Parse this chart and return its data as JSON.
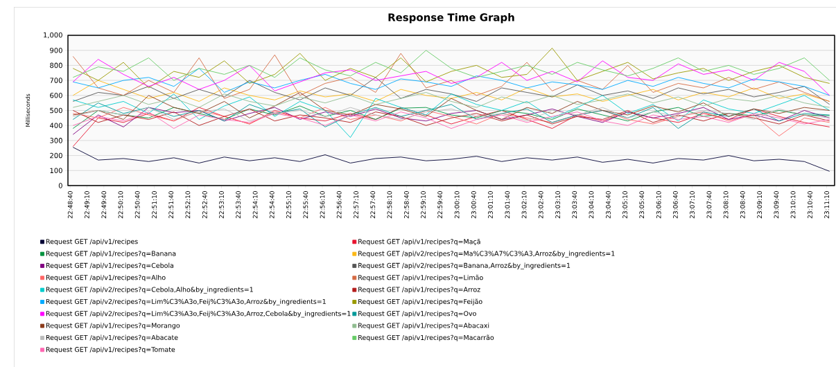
{
  "chart_data": {
    "type": "line",
    "title": "Response Time Graph",
    "ylabel": "Milliseconds",
    "x": [
      22.8125,
      22.825,
      22.8375,
      22.85,
      22.8625,
      22.875,
      22.8875,
      22.9,
      22.9125,
      22.925,
      22.9375,
      22.95,
      22.9625,
      22.975,
      22.9875,
      23.0,
      23.0125,
      23.025,
      23.0375,
      23.05,
      23.0625,
      23.075,
      23.0875,
      23.1,
      23.1125,
      23.125,
      23.1375,
      23.15,
      23.1625,
      23.175,
      23.1875
    ],
    "xlim": [
      22.81,
      23.19
    ],
    "xticks": [
      {
        "value": 22.8111,
        "label": "22:48:40"
      },
      {
        "value": 22.8194,
        "label": "22:49:10"
      },
      {
        "value": 22.8278,
        "label": "22:49:40"
      },
      {
        "value": 22.8361,
        "label": "22:50:10"
      },
      {
        "value": 22.8444,
        "label": "22:50:40"
      },
      {
        "value": 22.8528,
        "label": "22:51:10"
      },
      {
        "value": 22.8611,
        "label": "22:51:40"
      },
      {
        "value": 22.8694,
        "label": "22:52:10"
      },
      {
        "value": 22.8778,
        "label": "22:52:40"
      },
      {
        "value": 22.8861,
        "label": "22:53:10"
      },
      {
        "value": 22.8944,
        "label": "22:53:40"
      },
      {
        "value": 22.9028,
        "label": "22:54:10"
      },
      {
        "value": 22.9111,
        "label": "22:54:40"
      },
      {
        "value": 22.9194,
        "label": "22:55:10"
      },
      {
        "value": 22.9278,
        "label": "22:55:40"
      },
      {
        "value": 22.9361,
        "label": "22:56:10"
      },
      {
        "value": 22.9444,
        "label": "22:56:40"
      },
      {
        "value": 22.9528,
        "label": "22:57:10"
      },
      {
        "value": 22.9611,
        "label": "22:57:40"
      },
      {
        "value": 22.9694,
        "label": "22:58:10"
      },
      {
        "value": 22.9778,
        "label": "22:58:40"
      },
      {
        "value": 22.9861,
        "label": "22:59:10"
      },
      {
        "value": 22.9944,
        "label": "22:59:40"
      },
      {
        "value": 23.0028,
        "label": "23:00:10"
      },
      {
        "value": 23.0111,
        "label": "23:00:40"
      },
      {
        "value": 23.0194,
        "label": "23:01:10"
      },
      {
        "value": 23.0278,
        "label": "23:01:40"
      },
      {
        "value": 23.0361,
        "label": "23:02:10"
      },
      {
        "value": 23.0444,
        "label": "23:02:40"
      },
      {
        "value": 23.0528,
        "label": "23:03:10"
      },
      {
        "value": 23.0611,
        "label": "23:03:40"
      },
      {
        "value": 23.0694,
        "label": "23:04:10"
      },
      {
        "value": 23.0778,
        "label": "23:04:40"
      },
      {
        "value": 23.0861,
        "label": "23:05:10"
      },
      {
        "value": 23.0944,
        "label": "23:05:40"
      },
      {
        "value": 23.1028,
        "label": "23:06:10"
      },
      {
        "value": 23.1111,
        "label": "23:06:40"
      },
      {
        "value": 23.1194,
        "label": "23:07:10"
      },
      {
        "value": 23.1278,
        "label": "23:07:40"
      },
      {
        "value": 23.1361,
        "label": "23:08:10"
      },
      {
        "value": 23.1444,
        "label": "23:08:40"
      },
      {
        "value": 23.1528,
        "label": "23:09:10"
      },
      {
        "value": 23.1611,
        "label": "23:09:40"
      },
      {
        "value": 23.1694,
        "label": "23:10:10"
      },
      {
        "value": 23.1778,
        "label": "23:10:40"
      },
      {
        "value": 23.1861,
        "label": "23:11:10"
      }
    ],
    "ylim": [
      0,
      1000
    ],
    "yticks": [
      0,
      100,
      200,
      300,
      400,
      500,
      600,
      700,
      800,
      900,
      {
        "value": 1000,
        "label": "1,000"
      }
    ],
    "grid": "y",
    "legend": "bottom",
    "marker": "none",
    "line_style": "solid",
    "series": [
      {
        "name": "Request GET /api/v1/recipes",
        "color": "#000033",
        "values": [
          255,
          170,
          180,
          160,
          185,
          150,
          190,
          165,
          185,
          160,
          205,
          150,
          180,
          190,
          165,
          175,
          195,
          160,
          185,
          170,
          190,
          155,
          175,
          150,
          180,
          170,
          200,
          165,
          175,
          160,
          95
        ]
      },
      {
        "name": "Request GET /api/v1/recipes?q=Maçã",
        "color": "#e8132f",
        "values": [
          260,
          450,
          420,
          480,
          430,
          520,
          460,
          410,
          500,
          450,
          430,
          480,
          440,
          520,
          470,
          410,
          460,
          500,
          440,
          380,
          470,
          430,
          490,
          450,
          420,
          480,
          440,
          510,
          460,
          420,
          390
        ]
      },
      {
        "name": "Request GET /api/v1/recipes?q=Banana",
        "color": "#00923f",
        "values": [
          380,
          500,
          470,
          450,
          520,
          480,
          440,
          510,
          470,
          530,
          460,
          500,
          440,
          515,
          520,
          470,
          450,
          500,
          480,
          440,
          510,
          470,
          430,
          490,
          520,
          460,
          480,
          465,
          500,
          470,
          465
        ]
      },
      {
        "name": "Request GET /api/v2/recipes?q=Ma%C3%A7%C3%A3,Arroz&by_ingredients=1",
        "color": "#fcb814",
        "values": [
          600,
          700,
          640,
          580,
          620,
          560,
          650,
          600,
          570,
          630,
          590,
          610,
          560,
          640,
          600,
          580,
          620,
          570,
          650,
          590,
          610,
          560,
          600,
          640,
          570,
          620,
          590,
          650,
          580,
          610,
          560
        ]
      },
      {
        "name": "Request GET /api/v1/recipes?q=Cebola",
        "color": "#800080",
        "values": [
          340,
          470,
          390,
          520,
          485,
          500,
          430,
          480,
          520,
          440,
          490,
          460,
          510,
          450,
          430,
          480,
          500,
          440,
          470,
          510,
          460,
          420,
          490,
          450,
          480,
          520,
          440,
          470,
          430,
          500,
          450
        ]
      },
      {
        "name": "Request GET /api/v2/recipes?q=Banana,Arroz&by_ingredients=1",
        "color": "#555555",
        "values": [
          560,
          620,
          600,
          660,
          580,
          640,
          590,
          700,
          620,
          570,
          650,
          600,
          720,
          580,
          640,
          610,
          560,
          650,
          620,
          590,
          670,
          600,
          630,
          580,
          650,
          610,
          640,
          590,
          620,
          660,
          540
        ]
      },
      {
        "name": "Request GET /api/v1/recipes?q=Alho",
        "color": "#ff6666",
        "values": [
          480,
          450,
          520,
          470,
          430,
          500,
          460,
          410,
          490,
          450,
          520,
          440,
          470,
          430,
          500,
          460,
          410,
          480,
          450,
          420,
          470,
          500,
          440,
          410,
          460,
          490,
          430,
          470,
          330,
          450,
          420
        ]
      },
      {
        "name": "Request GET /api/v1/recipes?q=Limão",
        "color": "#d46a43",
        "values": [
          860,
          650,
          600,
          700,
          620,
          850,
          580,
          640,
          870,
          600,
          680,
          720,
          620,
          880,
          650,
          700,
          600,
          660,
          820,
          630,
          700,
          640,
          800,
          620,
          680,
          650,
          720,
          640,
          690,
          620,
          560
        ]
      },
      {
        "name": "Request GET /api/v2/recipes?q=Cebola,Alho&by_ingredients=1",
        "color": "#00cccc",
        "values": [
          570,
          520,
          560,
          480,
          610,
          440,
          530,
          590,
          460,
          560,
          500,
          320,
          580,
          520,
          470,
          610,
          540,
          500,
          560,
          450,
          520,
          600,
          480,
          540,
          430,
          570,
          510,
          480,
          540,
          600,
          500
        ]
      },
      {
        "name": "Request GET /api/v1/recipes?q=Arroz",
        "color": "#b31b1b",
        "values": [
          500,
          420,
          470,
          440,
          490,
          400,
          460,
          510,
          430,
          470,
          450,
          420,
          490,
          460,
          400,
          450,
          480,
          430,
          470,
          410,
          460,
          440,
          500,
          420,
          470,
          430,
          480,
          450,
          410,
          470,
          430
        ]
      },
      {
        "name": "Request GET /api/v2/recipes?q=Lim%C3%A3o,Feij%C3%A3o,Arroz&by_ingredients=1",
        "color": "#00aaff",
        "values": [
          690,
          650,
          700,
          720,
          660,
          780,
          620,
          690,
          650,
          700,
          740,
          680,
          640,
          710,
          690,
          660,
          730,
          700,
          650,
          690,
          670,
          640,
          700,
          660,
          720,
          680,
          650,
          710,
          690,
          660,
          600
        ]
      },
      {
        "name": "Request GET /api/v1/recipes?q=Feijão",
        "color": "#999900",
        "values": [
          780,
          700,
          820,
          650,
          760,
          720,
          830,
          680,
          740,
          880,
          700,
          780,
          720,
          850,
          690,
          760,
          800,
          720,
          740,
          915,
          700,
          760,
          820,
          710,
          750,
          780,
          700,
          760,
          800,
          720,
          680
        ]
      },
      {
        "name": "Request GET /api/v2/recipes?q=Lim%C3%A3o,Feij%C3%A3o,Arroz,Cebola&by_ingredients=1",
        "color": "#ff00ff",
        "values": [
          690,
          840,
          740,
          660,
          720,
          640,
          700,
          800,
          630,
          690,
          750,
          770,
          700,
          730,
          760,
          680,
          720,
          820,
          700,
          760,
          690,
          830,
          720,
          700,
          810,
          740,
          770,
          700,
          820,
          760,
          600
        ]
      },
      {
        "name": "Request GET /api/v1/recipes?q=Ovo",
        "color": "#009999",
        "values": [
          440,
          550,
          480,
          520,
          460,
          500,
          430,
          540,
          480,
          510,
          390,
          470,
          520,
          460,
          500,
          540,
          440,
          480,
          510,
          420,
          470,
          500,
          450,
          520,
          380,
          490,
          460,
          510,
          430,
          480,
          470
        ]
      },
      {
        "name": "Request GET /api/v1/recipes?q=Morango",
        "color": "#8b3a1a",
        "values": [
          470,
          500,
          440,
          600,
          520,
          480,
          560,
          450,
          530,
          620,
          500,
          470,
          540,
          510,
          460,
          580,
          500,
          440,
          520,
          480,
          560,
          500,
          470,
          530,
          490,
          550,
          460,
          510,
          480,
          520,
          500
        ]
      },
      {
        "name": "Request GET /api/v1/recipes?q=Abacaxi",
        "color": "#8fbc8f",
        "values": [
          520,
          560,
          600,
          540,
          580,
          520,
          610,
          560,
          530,
          590,
          550,
          600,
          540,
          580,
          620,
          560,
          520,
          590,
          550,
          600,
          540,
          570,
          610,
          550,
          590,
          530,
          580,
          560,
          600,
          550,
          520
        ]
      },
      {
        "name": "Request GET /api/v1/recipes?q=Abacate",
        "color": "#bbbbbb",
        "values": [
          460,
          500,
          470,
          520,
          440,
          490,
          510,
          430,
          480,
          500,
          460,
          520,
          470,
          440,
          490,
          510,
          460,
          480,
          430,
          500,
          470,
          520,
          450,
          490,
          460,
          500,
          480,
          440,
          510,
          470,
          450
        ]
      },
      {
        "name": "Request GET /api/v1/recipes?q=Macarrão",
        "color": "#66cc66",
        "values": [
          720,
          790,
          760,
          850,
          700,
          780,
          740,
          800,
          720,
          850,
          770,
          730,
          820,
          750,
          900,
          780,
          720,
          760,
          800,
          740,
          820,
          770,
          730,
          780,
          850,
          760,
          800,
          740,
          780,
          850,
          700
        ]
      },
      {
        "name": "Request GET /api/v1/recipes?q=Tomate",
        "color": "#ff66b2",
        "values": [
          400,
          460,
          430,
          490,
          380,
          470,
          440,
          420,
          480,
          450,
          400,
          470,
          430,
          490,
          450,
          380,
          440,
          470,
          420,
          460,
          490,
          430,
          400,
          470,
          440,
          460,
          420,
          480,
          450,
          410,
          440
        ]
      }
    ]
  }
}
